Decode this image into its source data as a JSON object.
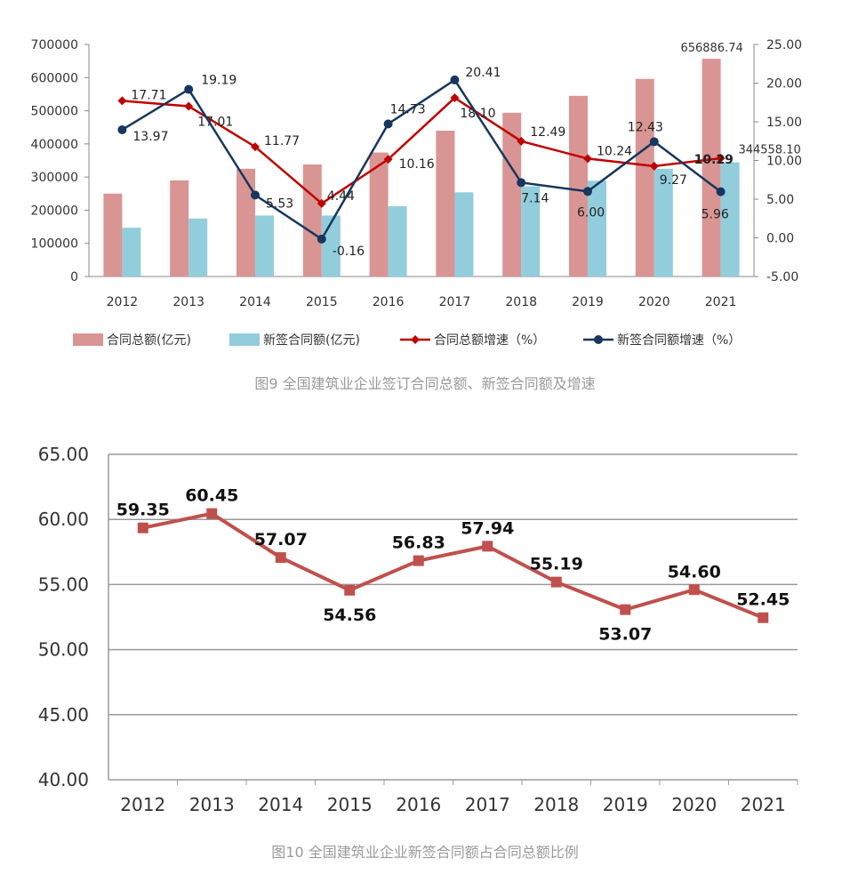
{
  "chart_data": [
    {
      "type": "bar",
      "categories": [
        "2012",
        "2013",
        "2014",
        "2015",
        "2016",
        "2017",
        "2018",
        "2019",
        "2020",
        "2021"
      ],
      "series": [
        {
          "name": "合同总额(亿元)",
          "kind": "bar",
          "axis": "left",
          "color": "#d99594",
          "values": [
            250000,
            290000,
            325000,
            338000,
            374000,
            440000,
            494000,
            545000,
            596000,
            656886.74
          ]
        },
        {
          "name": "新签合同额(亿元)",
          "kind": "bar",
          "axis": "left",
          "color": "#92cddc",
          "values": [
            147000,
            175000,
            184000,
            184000,
            212000,
            254000,
            272000,
            289000,
            325000,
            344558.1
          ]
        },
        {
          "name": "合同总额增速（%）",
          "kind": "line",
          "axis": "right",
          "color": "#c00000",
          "values": [
            17.71,
            17.01,
            11.77,
            4.44,
            10.16,
            18.1,
            12.49,
            10.24,
            9.27,
            10.29
          ]
        },
        {
          "name": "新签合同额增速（%）",
          "kind": "line",
          "axis": "right",
          "color": "#17375e",
          "values": [
            13.97,
            19.19,
            5.53,
            -0.16,
            14.73,
            20.41,
            7.14,
            6.0,
            12.43,
            5.96
          ]
        }
      ],
      "bar_labels": {
        "total_2021": "656886.74",
        "new_2021": "344558.10"
      },
      "left_ticks": [
        "0",
        "100000",
        "200000",
        "300000",
        "400000",
        "500000",
        "600000",
        "700000"
      ],
      "right_ticks": [
        "-5.00",
        "0.00",
        "5.00",
        "10.00",
        "15.00",
        "20.00",
        "25.00"
      ],
      "y_left_lim": [
        0,
        700000
      ],
      "y_right_lim": [
        -5,
        25
      ],
      "title": "图9 全国建筑业企业签订合同总额、新签合同额及增速"
    },
    {
      "type": "line",
      "categories": [
        "2012",
        "2013",
        "2014",
        "2015",
        "2016",
        "2017",
        "2018",
        "2019",
        "2020",
        "2021"
      ],
      "values": [
        59.35,
        60.45,
        57.07,
        54.56,
        56.83,
        57.94,
        55.19,
        53.07,
        54.6,
        52.45
      ],
      "value_labels": [
        "59.35",
        "60.45",
        "57.07",
        "54.56",
        "56.83",
        "57.94",
        "55.19",
        "53.07",
        "54.60",
        "52.45"
      ],
      "ylim": [
        40,
        65
      ],
      "y_ticks": [
        "40.00",
        "45.00",
        "50.00",
        "55.00",
        "60.00",
        "65.00"
      ],
      "color": "#c0504d",
      "title": "图10 全国建筑业企业新签合同额占合同总额比例"
    }
  ]
}
